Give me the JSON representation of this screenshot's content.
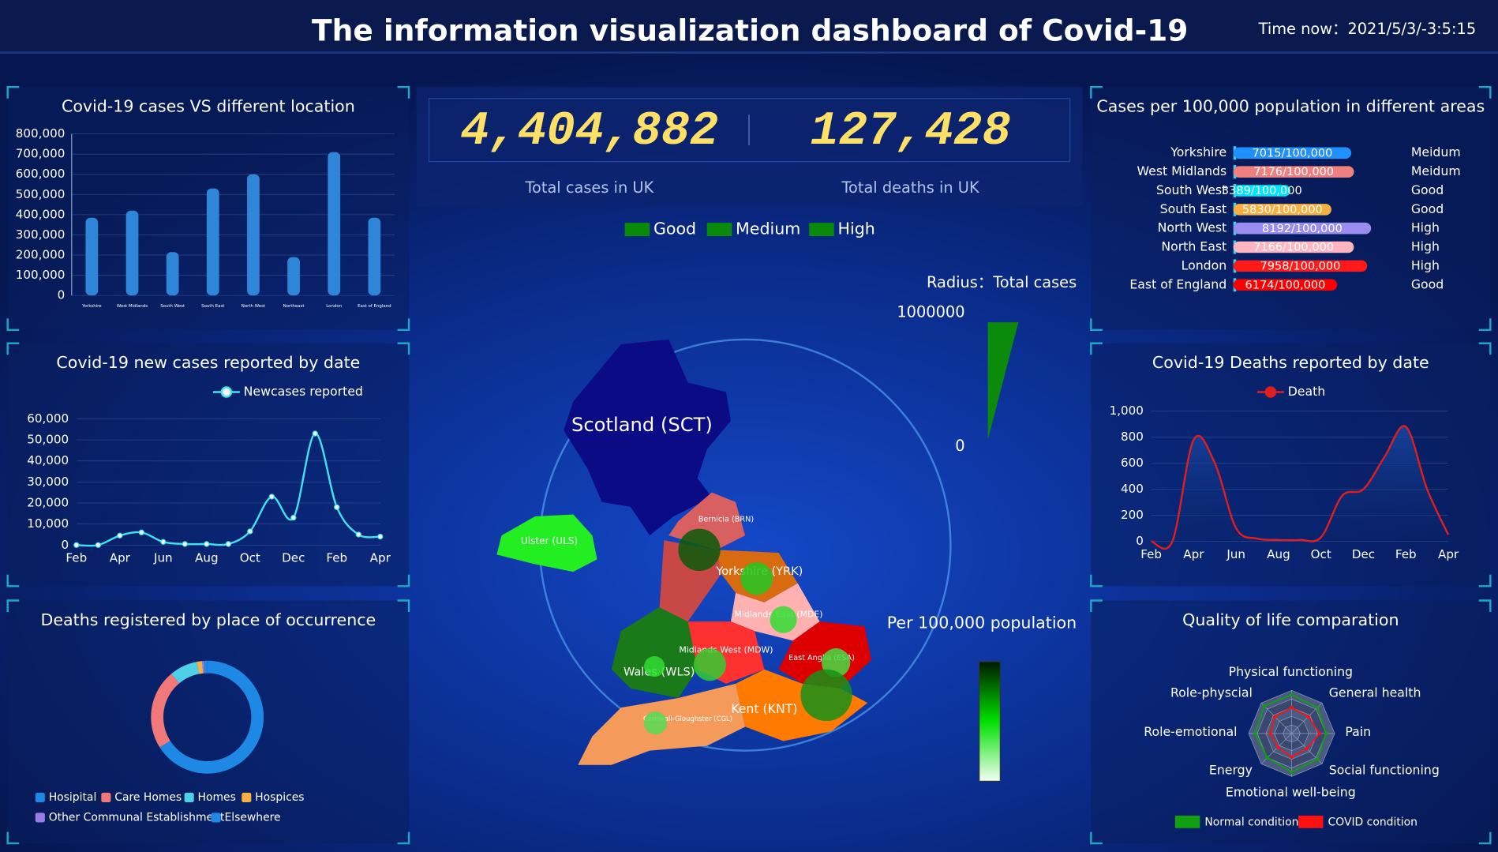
{
  "header": {
    "title": "The information visualization dashboard of Covid-19",
    "time": "Time now：2021/5/3/-3:5:15"
  },
  "kpis": [
    {
      "value": "4,404,882",
      "label": "Total cases in UK"
    },
    {
      "value": "127,428",
      "label": "Total deaths in UK"
    }
  ],
  "location_cases": {
    "type": "bar",
    "title": "Covid-19 cases VS different location",
    "categories": [
      "Yorkshire",
      "West Midlands",
      "South West",
      "South East",
      "North West",
      "Northeast",
      "London",
      "East of England"
    ],
    "values": [
      385000,
      420000,
      215000,
      530000,
      600000,
      190000,
      710000,
      385000
    ],
    "color": "#2f86d8",
    "ylim": [
      0,
      800000
    ],
    "yticks": [
      0,
      {
        "value": 100000,
        "label": "100,000"
      },
      {
        "value": 200000,
        "label": "200,000"
      },
      {
        "value": 300000,
        "label": "300,000"
      },
      {
        "value": 400000,
        "label": "400,000"
      },
      {
        "value": 500000,
        "label": "500,000"
      },
      {
        "value": 600000,
        "label": "600,000"
      },
      {
        "value": 700000,
        "label": "700,000"
      },
      {
        "value": 800000,
        "label": "800,000"
      }
    ],
    "grid": true
  },
  "new_cases": {
    "type": "line",
    "title": "Covid-19 new cases reported by date",
    "categories": [
      "Feb",
      null,
      "Apr",
      null,
      "Jun",
      null,
      "Aug",
      null,
      "Oct",
      null,
      "Dec",
      null,
      "Feb",
      null,
      "Apr"
    ],
    "series": [
      {
        "name": "Newcases reported",
        "color": "#3fe3f0",
        "values": [
          0,
          0,
          4500,
          6000,
          1500,
          500,
          500,
          500,
          6500,
          23000,
          13000,
          53000,
          18000,
          5000,
          4000
        ]
      }
    ],
    "ylim": [
      0,
      60000
    ],
    "yticks": [
      0,
      {
        "value": 10000,
        "label": "10,000"
      },
      {
        "value": 20000,
        "label": "20,000"
      },
      {
        "value": 30000,
        "label": "30,000"
      },
      {
        "value": 40000,
        "label": "40,000"
      },
      {
        "value": 50000,
        "label": "50,000"
      },
      {
        "value": 60000,
        "label": "60,000"
      }
    ],
    "grid": true
  },
  "place_of_death": {
    "type": "pie",
    "title": "Deaths registered by place of occurrence",
    "categories": [
      "Hosipital",
      "Care Homes",
      "Homes",
      "Hospices",
      "Other Communal Establishment",
      "Elsewhere"
    ],
    "values": [
      66,
      23,
      8,
      1.5,
      0.5,
      1
    ],
    "colors": [
      "#1e88e5",
      "#f07878",
      "#4fd0e8",
      "#f5b041",
      "#9b7bea",
      "#1e88e5"
    ]
  },
  "map": {
    "legend": [
      "Good",
      "Medium",
      "High"
    ],
    "legend_color": "#0a8a0a",
    "radius_title": "Radius：Total cases",
    "radius_ticks": [
      1000000,
      0
    ],
    "color_title": "Per 100,000 population",
    "regions": [
      {
        "label": "Scotland (SCT)"
      },
      {
        "label": "Ulster (ULS)"
      },
      {
        "label": "Bernicia (BRN)",
        "cases": 540000
      },
      {
        "label": "Yorkshire (YRK)",
        "cases": 320000
      },
      {
        "label": "Midlands East (MDE)",
        "cases": 220000
      },
      {
        "label": "Midlands West (MDW)",
        "cases": 320000
      },
      {
        "label": "East Anglia (ESA)",
        "cases": 250000
      },
      {
        "label": "Wales (WLS)",
        "cases": 130000
      },
      {
        "label": "Kent (KNT)",
        "cases": 810000
      },
      {
        "label": "Cornwall-Gloughster (CGL)",
        "cases": 160000
      }
    ]
  },
  "per_100k": {
    "type": "bar",
    "title": "Cases per 100,000 population in different areas",
    "categories": [
      "Yorkshire",
      "West Midlands",
      "South West",
      "South East",
      "North West",
      "North East",
      "London",
      "East of England"
    ],
    "values": [
      7015,
      7176,
      3389,
      5830,
      8192,
      7166,
      7958,
      6174
    ],
    "value_labels": [
      "7015/100,000",
      "7176/100,000",
      "3389/100,000",
      "5830/100,000",
      "8192/100,000",
      "7166/100,000",
      "7958/100,000",
      "6174/100,000"
    ],
    "status": [
      "Meidum",
      "Meidum",
      "Good",
      "Good",
      "High",
      "High",
      "High",
      "Good"
    ],
    "colors": [
      "#1e90ff",
      "#f08080",
      "#00e5ff",
      "#f5b041",
      "#9b8cf0",
      "#ffb6c1",
      "#ff1a1a",
      "#ff0000"
    ],
    "xlim": [
      0,
      10000
    ]
  },
  "deaths": {
    "type": "line",
    "title": "Covid-19 Deaths reported by date",
    "categories": [
      "Feb",
      null,
      "Apr",
      null,
      "Jun",
      null,
      "Aug",
      null,
      "Oct",
      null,
      "Dec",
      null,
      "Feb",
      null,
      "Apr"
    ],
    "series": [
      {
        "name": "Death",
        "color": "#e01e1e",
        "values": [
          0,
          0,
          780,
          600,
          100,
          20,
          10,
          10,
          30,
          350,
          400,
          650,
          880,
          400,
          50
        ]
      }
    ],
    "ylim": [
      0,
      1000
    ],
    "yticks": [
      0,
      200,
      400,
      600,
      800,
      {
        "value": 1000,
        "label": "1,000"
      }
    ],
    "grid": true
  },
  "quality": {
    "type": "radar",
    "title": "Quality of life comparation",
    "indicators": [
      "Physical functioning",
      "General health",
      "Pain",
      "Social functioning",
      "Emotional well-being",
      "Energy",
      "Role-emotional",
      "Role-physcial"
    ],
    "rlim": [
      0,
      100
    ],
    "series": [
      {
        "name": "Normal condition",
        "color": "#10a010",
        "values": [
          90,
          85,
          80,
          85,
          90,
          80,
          85,
          90
        ]
      },
      {
        "name": "COVID condition",
        "color": "#ff1010",
        "values": [
          60,
          55,
          65,
          50,
          55,
          45,
          50,
          55
        ]
      }
    ]
  }
}
